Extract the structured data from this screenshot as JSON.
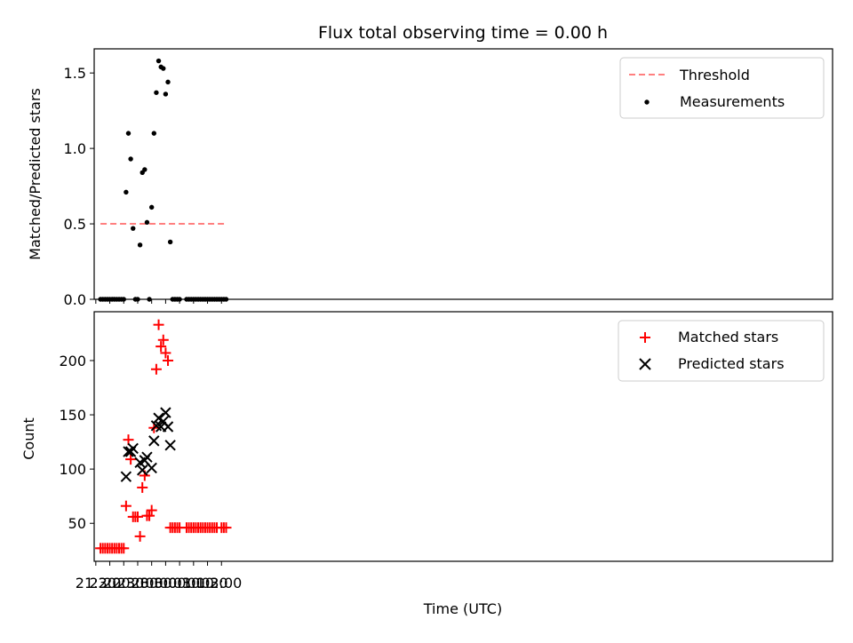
{
  "chart_data": [
    {
      "type": "scatter",
      "title": "Flux total observing time = 0.00 h",
      "xlabel": "",
      "ylabel": "Matched/Predicted stars",
      "xlim": [
        "21:26",
        "23:53 (+1)"
      ],
      "ylim": [
        0,
        1.66
      ],
      "yticks": [
        "0.0",
        "0.5",
        "1.0",
        "1.5"
      ],
      "ytick_values": [
        0,
        0.5,
        1.0,
        1.5
      ],
      "grid": false,
      "legend": {
        "placement": "top-right",
        "entries": [
          "Threshold",
          "Measurements"
        ]
      },
      "threshold": {
        "name": "Threshold",
        "value": 0.5,
        "x_start": "21:40",
        "x_end": "02:10",
        "color": "#ff7f7f",
        "style": "dashed"
      },
      "series": [
        {
          "name": "Measurements",
          "color": "#000000",
          "marker": "dot",
          "x": [
            "21:40",
            "21:45",
            "21:50",
            "21:55",
            "22:00",
            "22:05",
            "22:10",
            "22:15",
            "22:20",
            "22:25",
            "22:30",
            "22:35",
            "22:40",
            "22:45",
            "22:50",
            "22:55",
            "23:00",
            "23:05",
            "23:10",
            "23:15",
            "23:20",
            "23:25",
            "23:30",
            "23:35",
            "23:40",
            "23:45",
            "23:50",
            "23:55",
            "00:00",
            "00:05",
            "00:10",
            "00:15",
            "00:20",
            "00:25",
            "00:30",
            "00:45",
            "00:50",
            "00:55",
            "01:00",
            "01:05",
            "01:10",
            "01:15",
            "01:20",
            "01:25",
            "01:30",
            "01:35",
            "01:40",
            "01:45",
            "01:50",
            "01:55",
            "02:00",
            "02:05",
            "02:10"
          ],
          "y": [
            0,
            0,
            0,
            0,
            0,
            0,
            0,
            0,
            0,
            0,
            0,
            0.71,
            1.1,
            0.93,
            0.47,
            0,
            0,
            0.36,
            0.84,
            0.86,
            0.51,
            0,
            0.61,
            1.1,
            1.37,
            1.58,
            1.54,
            1.53,
            1.36,
            1.44,
            0.38,
            0,
            0,
            0,
            0,
            0,
            0,
            0,
            0,
            0,
            0,
            0,
            0,
            0,
            0,
            0,
            0,
            0,
            0,
            0,
            0,
            0,
            0
          ]
        }
      ]
    },
    {
      "type": "scatter",
      "title": "",
      "xlabel": "Time (UTC)",
      "ylabel": "Count",
      "xlim": [
        "21:26",
        "23:53 (+1)"
      ],
      "ylim": [
        15,
        245
      ],
      "yticks": [
        "50",
        "100",
        "150",
        "200"
      ],
      "ytick_values": [
        50,
        100,
        150,
        200
      ],
      "xticks": [
        "21:30",
        "22:00",
        "22:30",
        "23:00",
        "23:30",
        "00:00",
        "00:30",
        "01:00",
        "01:30",
        "02:00"
      ],
      "grid": false,
      "legend": {
        "placement": "top-right",
        "entries": [
          "Matched stars",
          "Predicted stars"
        ]
      },
      "series": [
        {
          "name": "Matched stars",
          "color": "#ff0000",
          "marker": "plus",
          "x": [
            "21:40",
            "21:45",
            "21:50",
            "21:55",
            "22:00",
            "22:05",
            "22:10",
            "22:15",
            "22:20",
            "22:25",
            "22:30",
            "22:35",
            "22:40",
            "22:45",
            "22:50",
            "22:55",
            "23:00",
            "23:05",
            "23:10",
            "23:15",
            "23:20",
            "23:25",
            "23:30",
            "23:35",
            "23:40",
            "23:45",
            "23:50",
            "23:55",
            "00:00",
            "00:05",
            "00:10",
            "00:15",
            "00:20",
            "00:25",
            "00:30",
            "00:45",
            "00:50",
            "00:55",
            "01:00",
            "01:05",
            "01:10",
            "01:15",
            "01:20",
            "01:25",
            "01:30",
            "01:35",
            "01:40",
            "01:45",
            "01:50",
            "02:00",
            "02:05",
            "02:10"
          ],
          "y": [
            27,
            27,
            27,
            27,
            27,
            27,
            27,
            27,
            27,
            27,
            27,
            66,
            127,
            109,
            56,
            56,
            56,
            38,
            83,
            94,
            57,
            57,
            62,
            138,
            192,
            233,
            213,
            219,
            207,
            200,
            46,
            46,
            46,
            46,
            46,
            46,
            46,
            46,
            46,
            46,
            46,
            46,
            46,
            46,
            46,
            46,
            46,
            46,
            46,
            46,
            46,
            46
          ]
        },
        {
          "name": "Predicted stars",
          "color": "#000000",
          "marker": "cross",
          "x": [
            "22:35",
            "22:40",
            "22:45",
            "22:50",
            "23:05",
            "23:10",
            "23:15",
            "23:20",
            "23:30",
            "23:35",
            "23:40",
            "23:45",
            "23:50",
            "23:55",
            "00:00",
            "00:05",
            "00:10"
          ],
          "y": [
            93,
            116,
            116,
            119,
            106,
            99,
            108,
            111,
            101,
            126,
            140,
            147,
            139,
            144,
            152,
            139,
            122
          ]
        }
      ]
    }
  ]
}
